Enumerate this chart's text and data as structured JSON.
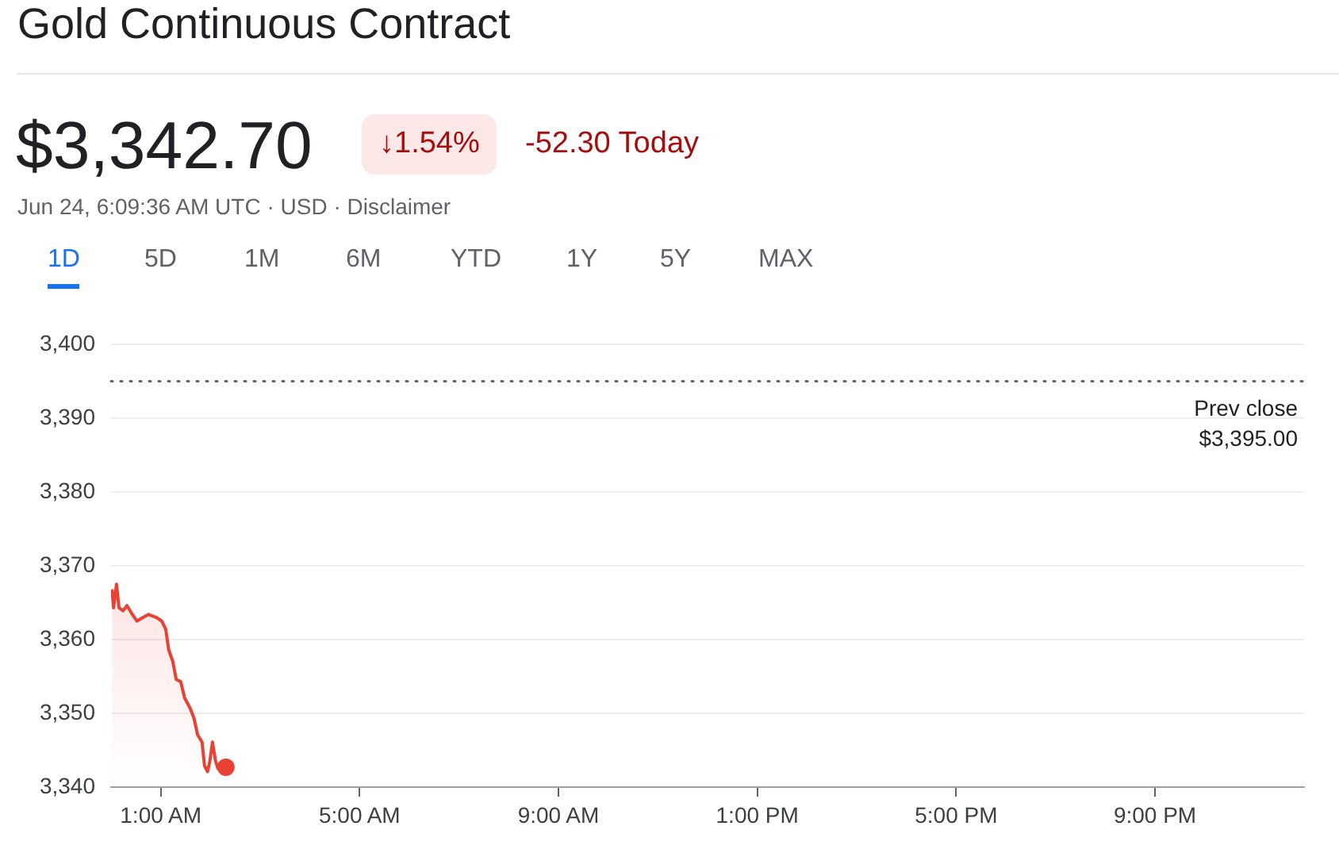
{
  "chart_data": {
    "type": "area",
    "title": "Gold Continuous Contract",
    "subtitle": "$3,342.70",
    "annotations": [
      "↓1.54%",
      "-52.30 Today",
      "Jun 24, 6:09:36 AM UTC · USD · Disclaimer",
      "1D",
      "5D",
      "1M",
      "6M",
      "YTD",
      "1Y",
      "5Y",
      "MAX"
    ],
    "series": [
      {
        "color": "#e94235",
        "marker": "none",
        "x": [
          0.02,
          0.05,
          0.11,
          0.16,
          0.24,
          0.32,
          0.41,
          0.52,
          0.62,
          0.75,
          0.91,
          1.02,
          1.1,
          1.16,
          1.24,
          1.31,
          1.4,
          1.48,
          1.59,
          1.67,
          1.74,
          1.83,
          1.88,
          1.94,
          1.99,
          2.04,
          2.1,
          2.15,
          2.24,
          2.31
        ],
        "values": [
          3366.8,
          3364.3,
          3367.5,
          3364.3,
          3363.9,
          3364.6,
          3363.6,
          3362.5,
          3362.9,
          3363.4,
          3363.0,
          3362.5,
          3361.4,
          3358.6,
          3357.1,
          3354.6,
          3354.3,
          3352.1,
          3350.7,
          3349.3,
          3347.1,
          3346.1,
          3342.9,
          3342.1,
          3343.6,
          3346.1,
          3343.6,
          3342.5,
          3343.0,
          3342.7
        ]
      },
      {
        "type": "scatter",
        "color": "#e94235",
        "marker": "circle",
        "x": [
          2.31
        ],
        "values": [
          3342.7
        ]
      }
    ],
    "xlim": [
      0,
      24
    ],
    "xticks": [
      {
        "value": 1,
        "label": "1:00 AM"
      },
      {
        "value": 5,
        "label": "5:00 AM"
      },
      {
        "value": 9,
        "label": "9:00 AM"
      },
      {
        "value": 13,
        "label": "1:00 PM"
      },
      {
        "value": 17,
        "label": "5:00 PM"
      },
      {
        "value": 21,
        "label": "9:00 PM"
      }
    ],
    "ylim": [
      3340,
      3400
    ],
    "yticks": [
      {
        "value": 3340,
        "label": "3,340"
      },
      {
        "value": 3350,
        "label": "3,350"
      },
      {
        "value": 3360,
        "label": "3,360"
      },
      {
        "value": 3370,
        "label": "3,370"
      },
      {
        "value": 3380,
        "label": "3,380"
      },
      {
        "value": 3390,
        "label": "3,390"
      },
      {
        "value": 3400,
        "label": "3,400"
      }
    ],
    "ref_lines": [
      {
        "axis": "y",
        "value": 3395,
        "label": "Prev close\n$3,395.00",
        "color": "#5f6368",
        "line_style": "dotted"
      }
    ],
    "grid": "y",
    "legend": false
  }
}
